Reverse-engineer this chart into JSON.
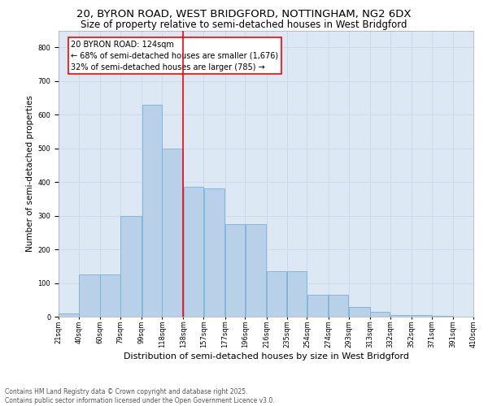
{
  "title_line1": "20, BYRON ROAD, WEST BRIDGFORD, NOTTINGHAM, NG2 6DX",
  "title_line2": "Size of property relative to semi-detached houses in West Bridgford",
  "xlabel": "Distribution of semi-detached houses by size in West Bridgford",
  "ylabel": "Number of semi-detached properties",
  "annotation_title": "20 BYRON ROAD: 124sqm",
  "annotation_line1": "← 68% of semi-detached houses are smaller (1,676)",
  "annotation_line2": "32% of semi-detached houses are larger (785) →",
  "bin_edges": [
    21,
    40,
    60,
    79,
    99,
    118,
    138,
    157,
    177,
    196,
    216,
    235,
    254,
    274,
    293,
    313,
    332,
    352,
    371,
    391,
    410
  ],
  "bin_labels": [
    "21sqm",
    "40sqm",
    "60sqm",
    "79sqm",
    "99sqm",
    "118sqm",
    "138sqm",
    "157sqm",
    "177sqm",
    "196sqm",
    "216sqm",
    "235sqm",
    "254sqm",
    "274sqm",
    "293sqm",
    "313sqm",
    "332sqm",
    "352sqm",
    "371sqm",
    "391sqm",
    "410sqm"
  ],
  "bar_values": [
    10,
    125,
    125,
    300,
    630,
    500,
    385,
    380,
    275,
    275,
    135,
    135,
    65,
    65,
    30,
    15,
    5,
    5,
    2,
    1
  ],
  "bar_color": "#b8d0e8",
  "bar_edge_color": "#7aafd4",
  "vline_color": "red",
  "ylim": [
    0,
    850
  ],
  "yticks": [
    0,
    100,
    200,
    300,
    400,
    500,
    600,
    700,
    800
  ],
  "grid_color": "#c8d8eb",
  "background_color": "#dce8f3",
  "footnote_line1": "Contains HM Land Registry data © Crown copyright and database right 2025.",
  "footnote_line2": "Contains public sector information licensed under the Open Government Licence v3.0.",
  "title_fontsize": 9.5,
  "subtitle_fontsize": 8.5,
  "ylabel_fontsize": 7.5,
  "xlabel_fontsize": 8,
  "tick_fontsize": 6,
  "annot_fontsize": 7
}
